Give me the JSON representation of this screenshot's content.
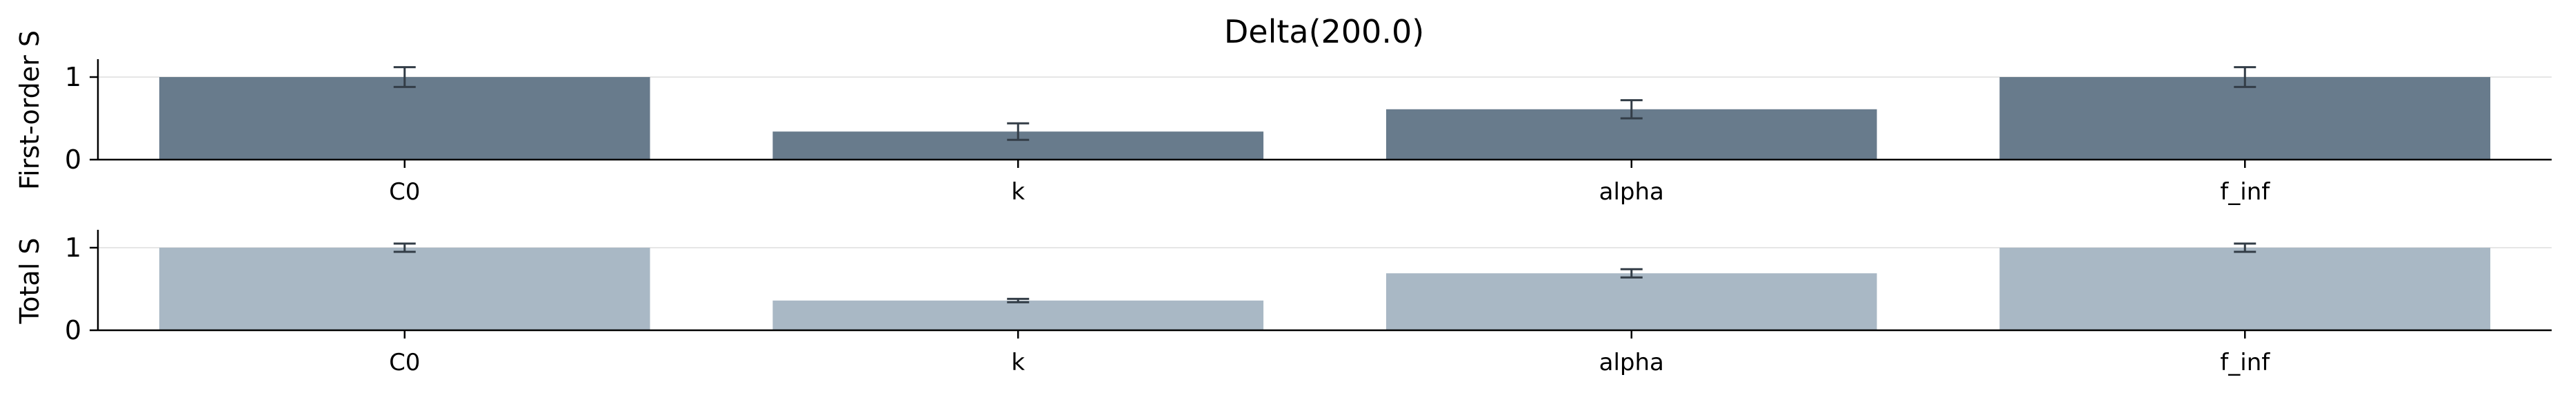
{
  "chart_data": {
    "type": "bar",
    "title": "Delta(200.0)",
    "categories": [
      "C0",
      "k",
      "alpha",
      "f_inf"
    ],
    "colors": {
      "first_order": "#687b8c",
      "total": "#a9b8c5",
      "error_bar": "#333d47",
      "grid": "#e6e6e6"
    },
    "panels": [
      {
        "ylabel": "First-order S",
        "ylim": [
          0,
          1.2
        ],
        "yticks": [
          "0",
          "1"
        ],
        "values": [
          1.0,
          0.34,
          0.61,
          1.0
        ],
        "errors": [
          0.12,
          0.1,
          0.11,
          0.12
        ],
        "grid": true
      },
      {
        "ylabel": "Total S",
        "ylim": [
          0,
          1.2
        ],
        "yticks": [
          "0",
          "1"
        ],
        "values": [
          1.0,
          0.36,
          0.69,
          1.0
        ],
        "errors": [
          0.05,
          0.02,
          0.05,
          0.05
        ],
        "grid": true
      }
    ]
  }
}
